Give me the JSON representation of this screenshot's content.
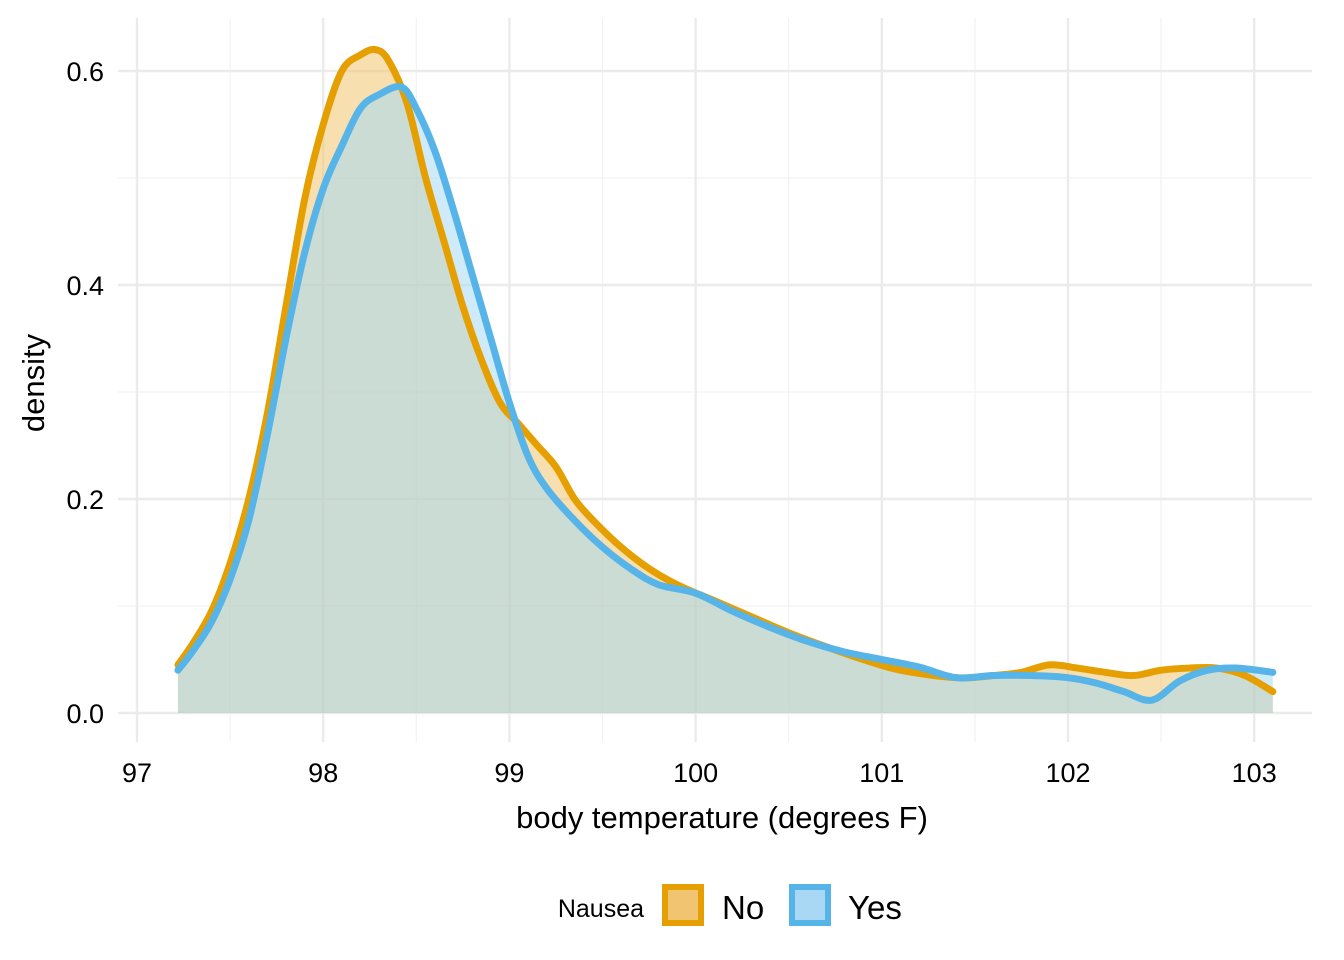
{
  "chart_data": {
    "type": "area",
    "title": "",
    "xlabel": "body temperature (degrees F)",
    "ylabel": "density",
    "xlim": [
      97,
      103.1
    ],
    "ylim": [
      0,
      0.62
    ],
    "x_ticks": [
      97,
      98,
      99,
      100,
      101,
      102,
      103
    ],
    "x_tick_labels": [
      "97",
      "98",
      "99",
      "100",
      "101",
      "102",
      "103"
    ],
    "y_ticks": [
      0.0,
      0.2,
      0.4,
      0.6
    ],
    "y_tick_labels": [
      "0.0",
      "0.2",
      "0.4",
      "0.6"
    ],
    "grid": true,
    "legend": {
      "title": "Nausea",
      "position": "bottom"
    },
    "series": [
      {
        "name": "No",
        "line_color": "#E69F00",
        "fill_color": "#F0C470",
        "x": [
          97.22,
          97.3,
          97.4,
          97.5,
          97.6,
          97.7,
          97.8,
          97.9,
          98.0,
          98.1,
          98.2,
          98.28,
          98.35,
          98.45,
          98.55,
          98.65,
          98.75,
          98.85,
          98.95,
          99.05,
          99.15,
          99.25,
          99.35,
          99.45,
          99.6,
          99.75,
          99.9,
          100.1,
          100.3,
          100.5,
          100.7,
          100.9,
          101.1,
          101.4,
          101.6,
          101.75,
          101.9,
          102.05,
          102.2,
          102.35,
          102.5,
          102.65,
          102.8,
          102.95,
          103.1
        ],
        "y": [
          0.045,
          0.065,
          0.095,
          0.14,
          0.2,
          0.28,
          0.38,
          0.48,
          0.55,
          0.6,
          0.615,
          0.62,
          0.61,
          0.57,
          0.5,
          0.44,
          0.38,
          0.33,
          0.29,
          0.27,
          0.25,
          0.23,
          0.2,
          0.18,
          0.155,
          0.135,
          0.12,
          0.105,
          0.09,
          0.075,
          0.062,
          0.05,
          0.04,
          0.033,
          0.035,
          0.038,
          0.045,
          0.042,
          0.038,
          0.035,
          0.04,
          0.042,
          0.042,
          0.035,
          0.02
        ]
      },
      {
        "name": "Yes",
        "line_color": "#56B4E9",
        "fill_color": "#A8D8F3",
        "x": [
          97.22,
          97.3,
          97.4,
          97.5,
          97.6,
          97.7,
          97.8,
          97.9,
          98.0,
          98.1,
          98.2,
          98.3,
          98.42,
          98.5,
          98.6,
          98.7,
          98.8,
          98.9,
          99.0,
          99.1,
          99.2,
          99.35,
          99.5,
          99.65,
          99.8,
          100.0,
          100.2,
          100.4,
          100.6,
          100.8,
          101.0,
          101.2,
          101.4,
          101.6,
          101.8,
          102.0,
          102.15,
          102.3,
          102.45,
          102.6,
          102.75,
          102.9,
          103.1
        ],
        "y": [
          0.04,
          0.058,
          0.085,
          0.125,
          0.18,
          0.26,
          0.35,
          0.43,
          0.49,
          0.53,
          0.565,
          0.578,
          0.585,
          0.565,
          0.525,
          0.47,
          0.41,
          0.35,
          0.29,
          0.24,
          0.21,
          0.18,
          0.155,
          0.135,
          0.12,
          0.112,
          0.095,
          0.08,
          0.067,
          0.057,
          0.05,
          0.043,
          0.033,
          0.035,
          0.035,
          0.033,
          0.028,
          0.02,
          0.012,
          0.03,
          0.04,
          0.042,
          0.038
        ]
      }
    ]
  }
}
